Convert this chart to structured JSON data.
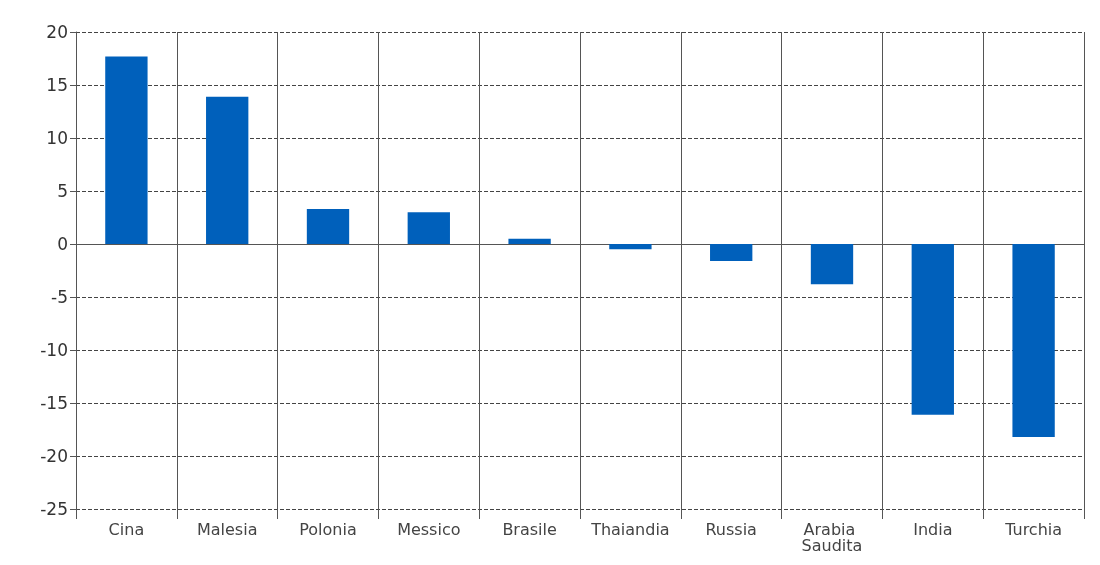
{
  "chart_data": {
    "type": "bar",
    "categories": [
      "Cina",
      "Malesia",
      "Polonia",
      "Messico",
      "Brasile",
      "Thaiandia",
      "Russia",
      "Arabia Saudita",
      "India",
      "Turchia"
    ],
    "values": [
      17.7,
      13.9,
      3.3,
      3.0,
      0.5,
      -0.5,
      -1.6,
      -3.8,
      -16.1,
      -18.2
    ],
    "color": "#0060bb",
    "ylim": [
      -25,
      20
    ],
    "yticks": [
      -25,
      -20,
      -15,
      -10,
      -5,
      0,
      5,
      10,
      15,
      20
    ],
    "grid": true
  }
}
